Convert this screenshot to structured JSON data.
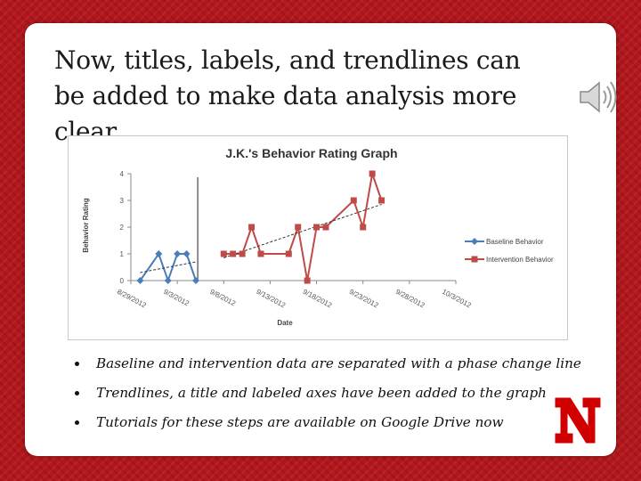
{
  "slide": {
    "title": "Now, titles, labels, and trendlines can be added to make data analysis more clear",
    "bullets": [
      "Baseline and intervention data are separated with a phase change line",
      "Trendlines, a title and labeled axes have been added to the graph",
      "Tutorials for these steps are available on Google Drive now"
    ],
    "speaker_icon": "speaker-icon",
    "logo_icon": "university-n-logo",
    "logo_color": "#d00000",
    "background_color": "#b3161d"
  },
  "chart_data": {
    "type": "line",
    "title": "J.K.'s Behavior Rating Graph",
    "xlabel": "Date",
    "ylabel": "Behavior Rating",
    "ylim": [
      0,
      4
    ],
    "yticks": [
      "0",
      "1",
      "2",
      "3",
      "4"
    ],
    "xticks": [
      "8/29/2012",
      "9/3/2012",
      "9/8/2012",
      "9/13/2012",
      "9/18/2012",
      "9/23/2012",
      "9/28/2012",
      "10/3/2012"
    ],
    "xlim_days": [
      0,
      35
    ],
    "grid": false,
    "legend_position": "right",
    "phase_change_line_x": 7.2,
    "series": [
      {
        "name": "Baseline Behavior",
        "color": "#4a7ebb",
        "marker": "diamond",
        "x": [
          1,
          3,
          4,
          5,
          6,
          7
        ],
        "y": [
          0,
          1,
          0,
          1,
          1,
          0
        ],
        "trend": [
          [
            1,
            0.3
          ],
          [
            7,
            0.7
          ]
        ]
      },
      {
        "name": "Intervention Behavior",
        "color": "#be4b48",
        "marker": "square",
        "x": [
          10,
          11,
          12,
          13,
          14,
          17,
          18,
          19,
          20,
          21,
          24,
          25,
          26,
          27
        ],
        "y": [
          1,
          1,
          1,
          2,
          1,
          1,
          2,
          0,
          2,
          2,
          3,
          2,
          4,
          3
        ],
        "trend": [
          [
            10,
            0.85
          ],
          [
            27,
            2.85
          ]
        ]
      }
    ]
  }
}
